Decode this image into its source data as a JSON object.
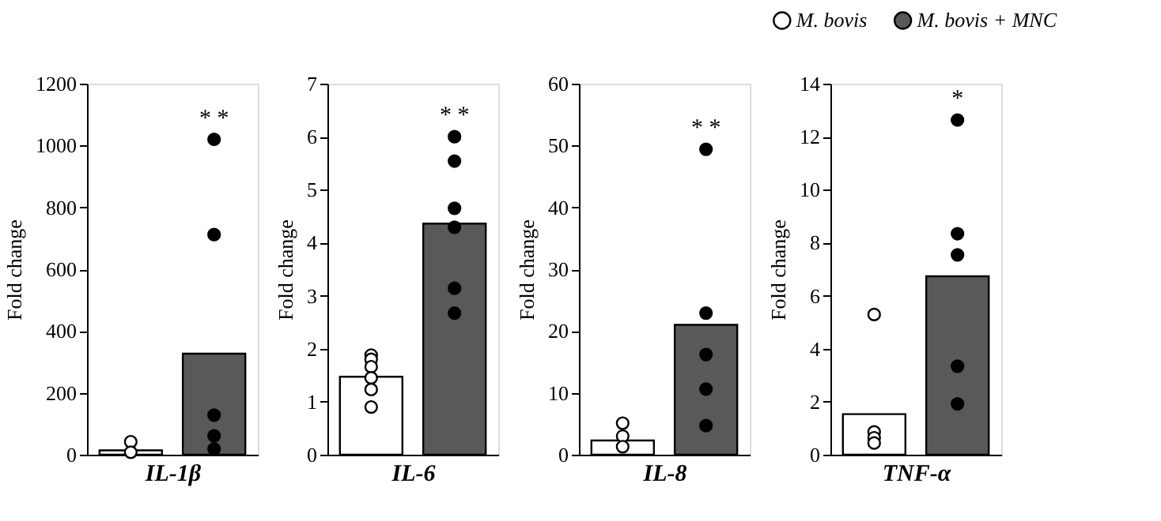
{
  "chart_data": [
    {
      "type": "bar",
      "categories": [
        null,
        null
      ],
      "xlabel": "IL-1β",
      "ylabel": "Fold change",
      "ylim": [
        0,
        1200
      ],
      "yticks": [
        0,
        200,
        400,
        600,
        800,
        1000,
        1200
      ],
      "tick_labels": "y",
      "marker": "circle",
      "annotations": [
        "* *"
      ],
      "series": [
        {
          "color": "#ffffff",
          "values": [
            14,
            null
          ]
        },
        {
          "color": "#595959",
          "values": [
            null,
            327
          ]
        },
        {
          "type": "scatter",
          "colors": [
            "#ffffff",
            "#000000"
          ],
          "values": [
            42,
            1020
          ]
        },
        {
          "type": "scatter",
          "colors": [
            "#ffffff",
            "#000000"
          ],
          "values": [
            8,
            712
          ]
        },
        {
          "type": "scatter",
          "colors": [
            "#ffffff",
            "#000000"
          ],
          "values": [
            null,
            128
          ]
        },
        {
          "type": "scatter",
          "colors": [
            "#ffffff",
            "#000000"
          ],
          "values": [
            null,
            61
          ]
        },
        {
          "type": "scatter",
          "colors": [
            "#ffffff",
            "#000000"
          ],
          "values": [
            null,
            19
          ]
        }
      ]
    },
    {
      "type": "bar",
      "categories": [
        null,
        null
      ],
      "xlabel": "IL-6",
      "ylabel": "Fold change",
      "ylim": [
        0,
        7
      ],
      "yticks": [
        0,
        1,
        2,
        3,
        4,
        5,
        6,
        7
      ],
      "tick_labels": "y",
      "marker": "circle",
      "annotations": [
        "* *"
      ],
      "series": [
        {
          "color": "#ffffff",
          "values": [
            1.47,
            null
          ]
        },
        {
          "color": "#595959",
          "values": [
            null,
            4.36
          ]
        },
        {
          "type": "scatter",
          "colors": [
            "#ffffff",
            "#000000"
          ],
          "values": [
            1.88,
            6.0
          ]
        },
        {
          "type": "scatter",
          "colors": [
            "#ffffff",
            "#000000"
          ],
          "values": [
            1.8,
            5.54
          ]
        },
        {
          "type": "scatter",
          "colors": [
            "#ffffff",
            "#000000"
          ],
          "values": [
            1.66,
            4.65
          ]
        },
        {
          "type": "scatter",
          "colors": [
            "#ffffff",
            "#000000"
          ],
          "values": [
            1.45,
            4.29
          ]
        },
        {
          "type": "scatter",
          "colors": [
            "#ffffff",
            "#000000"
          ],
          "values": [
            1.23,
            3.14
          ]
        },
        {
          "type": "scatter",
          "colors": [
            "#ffffff",
            "#000000"
          ],
          "values": [
            0.9,
            2.67
          ]
        }
      ]
    },
    {
      "type": "bar",
      "categories": [
        null,
        null
      ],
      "xlabel": "IL-8",
      "ylabel": "Fold change",
      "ylim": [
        0,
        60
      ],
      "yticks": [
        0,
        10,
        20,
        30,
        40,
        50,
        60
      ],
      "tick_labels": "y",
      "marker": "circle",
      "annotations": [
        "* *"
      ],
      "series": [
        {
          "color": "#ffffff",
          "values": [
            2.3,
            null
          ]
        },
        {
          "color": "#595959",
          "values": [
            null,
            21
          ]
        },
        {
          "type": "scatter",
          "colors": [
            "#ffffff",
            "#000000"
          ],
          "values": [
            5.1,
            49.4
          ]
        },
        {
          "type": "scatter",
          "colors": [
            "#ffffff",
            "#000000"
          ],
          "values": [
            3.0,
            22.9
          ]
        },
        {
          "type": "scatter",
          "colors": [
            "#ffffff",
            "#000000"
          ],
          "values": [
            1.3,
            16.2
          ]
        },
        {
          "type": "scatter",
          "colors": [
            "#ffffff",
            "#000000"
          ],
          "values": [
            null,
            10.6
          ]
        },
        {
          "type": "scatter",
          "colors": [
            "#ffffff",
            "#000000"
          ],
          "values": [
            null,
            4.7
          ]
        }
      ]
    },
    {
      "type": "bar",
      "categories": [
        null,
        null
      ],
      "xlabel": "TNF-α",
      "ylabel": "Fold change",
      "ylim": [
        0,
        14
      ],
      "yticks": [
        0,
        2,
        4,
        6,
        8,
        10,
        12,
        14
      ],
      "tick_labels": "y",
      "marker": "circle",
      "legend": "top right",
      "annotations": [
        "*"
      ],
      "series": [
        {
          "name": "M. bovis",
          "color": "#ffffff",
          "values": [
            1.53,
            null
          ]
        },
        {
          "name": "M. bovis + MNC",
          "color": "#595959",
          "values": [
            null,
            6.73
          ]
        },
        {
          "type": "scatter",
          "colors": [
            "#ffffff",
            "#000000"
          ],
          "values": [
            5.29,
            12.63
          ]
        },
        {
          "type": "scatter",
          "colors": [
            "#ffffff",
            "#000000"
          ],
          "values": [
            0.86,
            8.34
          ]
        },
        {
          "type": "scatter",
          "colors": [
            "#ffffff",
            "#000000"
          ],
          "values": [
            0.64,
            7.54
          ]
        },
        {
          "type": "scatter",
          "colors": [
            "#ffffff",
            "#000000"
          ],
          "values": [
            0.44,
            3.34
          ]
        },
        {
          "type": "scatter",
          "colors": [
            "#ffffff",
            "#000000"
          ],
          "values": [
            null,
            1.92
          ]
        }
      ]
    }
  ]
}
